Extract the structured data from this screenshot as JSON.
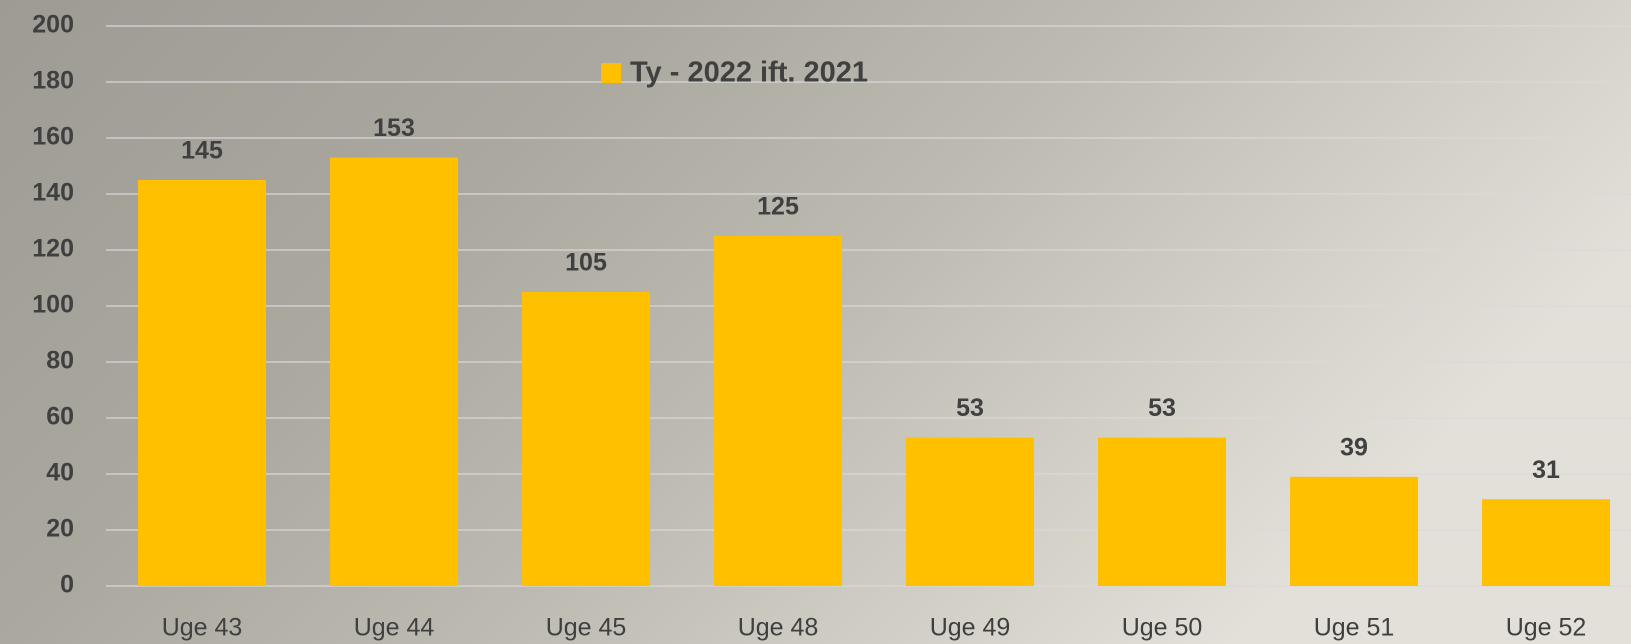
{
  "chart_data": {
    "type": "bar",
    "categories": [
      "Uge 43",
      "Uge 44",
      "Uge 45",
      "Uge 48",
      "Uge 49",
      "Uge 50",
      "Uge 51",
      "Uge 52"
    ],
    "series": [
      {
        "name": "Ty - 2022 ift. 2021",
        "color": "#ffc000",
        "values": [
          145,
          153,
          105,
          125,
          53,
          53,
          39,
          31
        ]
      }
    ],
    "ylim": [
      0,
      200
    ],
    "yticks": [
      0,
      20,
      40,
      60,
      80,
      100,
      120,
      140,
      160,
      180,
      200
    ],
    "grid": true,
    "legend": "top"
  }
}
